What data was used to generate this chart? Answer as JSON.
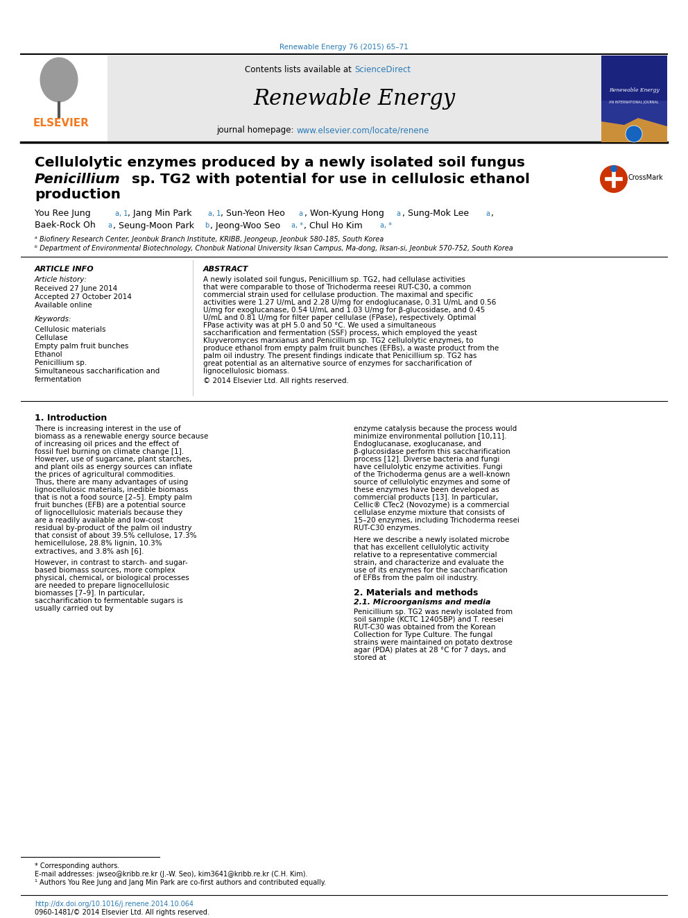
{
  "page_bg": "#ffffff",
  "top_journal_ref": "Renewable Energy 76 (2015) 65–71",
  "top_journal_ref_color": "#2a7ab5",
  "header_bg": "#e8e8e8",
  "header_border_color": "#000000",
  "elsevier_color": "#f47920",
  "journal_title": "Renewable Energy",
  "contents_text": "Contents lists available at ",
  "sciencedirect_text": "ScienceDirect",
  "sciencedirect_color": "#2a7ab5",
  "homepage_text": "journal homepage: ",
  "homepage_url": "www.elsevier.com/locate/renene",
  "homepage_url_color": "#2a7ab5",
  "paper_title_line1": "Cellulolytic enzymes produced by a newly isolated soil fungus",
  "paper_title_line2": "Penicillium sp. TG2 with potential for use in cellulosic ethanol",
  "paper_title_line3": "production",
  "paper_title_italic_word": "Penicillium",
  "authors_line1": "You Ree Jung ᵃ¹ⁿ, Jang Min Park ᵃ¹, Sun-Yeon Heo ᵃ, Won-Kyung Hong ᵃ, Sung-Mok Lee ᵃ,",
  "authors_line2": "Baek-Rock Oh ᵃ, Seung-Moon Park ᵇ, Jeong-Woo Seo ᵃ,*, Chul Ho Kim ᵃ,*",
  "affil_a": "ᵃ Biofinery Research Center, Jeonbuk Branch Institute, KRIBB, Jeongeup, Jeonbuk 580-185, South Korea",
  "affil_b": "ᵇ Department of Environmental Biotechnology, Chonbuk National University Iksan Campus, Ma-dong, Iksan-si, Jeonbuk 570-752, South Korea",
  "article_info_title": "ARTICLE INFO",
  "article_history_title": "Article history:",
  "received_text": "Received 27 June 2014",
  "accepted_text": "Accepted 27 October 2014",
  "available_text": "Available online",
  "keywords_title": "Keywords:",
  "keywords": [
    "Cellulosic materials",
    "Cellulase",
    "Empty palm fruit bunches",
    "Ethanol",
    "Penicillium sp.",
    "Simultaneous saccharification and",
    "fermentation"
  ],
  "abstract_title": "ABSTRACT",
  "abstract_text": "A newly isolated soil fungus, Penicillium sp. TG2, had cellulase activities that were comparable to those of Trichoderma reesei RUT-C30, a common commercial strain used for cellulase production. The maximal and specific activities were 1.27 U/mL and 2.28 U/mg for endoglucanase, 0.31 U/mL and 0.56 U/mg for exoglucanase, 0.54 U/mL and 1.03 U/mg for β-glucosidase, and 0.45 U/mL and 0.81 U/mg for filter paper cellulase (FPase), respectively. Optimal FPase activity was at pH 5.0 and 50 °C. We used a simultaneous saccharification and fermentation (SSF) process, which employed the yeast Kluyveromyces marxianus and Penicillium sp. TG2 cellulolytic enzymes, to produce ethanol from empty palm fruit bunches (EFBs), a waste product from the palm oil industry. The present findings indicate that Penicillium sp. TG2 has great potential as an alternative source of enzymes for saccharification of lignocellulosic biomass.",
  "copyright_text": "© 2014 Elsevier Ltd. All rights reserved.",
  "intro_title": "1. Introduction",
  "intro_text1": "There is increasing interest in the use of biomass as a renewable energy source because of increasing oil prices and the effect of fossil fuel burning on climate change [1]. However, use of sugarcane, plant starches, and plant oils as energy sources can inflate the prices of agricultural commodities. Thus, there are many advantages of using lignocellulosic materials, inedible biomass that is not a food source [2–5]. Empty palm fruit bunches (EFB) are a potential source of lignocellulosic materials because they are a readily available and low-cost residual by-product of the palm oil industry that consist of about 39.5% cellulose, 17.3% hemicellulose, 28.8% lignin, 10.3% extractives, and 3.8% ash [6].",
  "intro_text2": "However, in contrast to starch- and sugar-based biomass sources, more complex physical, chemical, or biological processes are needed to prepare lignocellulosic biomasses [7–9]. In particular, saccharification to fermentable sugars is usually carried out by",
  "right_col_text1": "enzyme catalysis because the process would minimize environmental pollution [10,11]. Endoglucanase, exoglucanase, and β-glucosidase perform this saccharification process [12]. Diverse bacteria and fungi have cellulolytic enzyme activities. Fungi of the Trichoderma genus are a well-known source of cellulolytic enzymes and some of these enzymes have been developed as commercial products [13]. In particular, Cellic® CTec2 (Novozyme) is a commercial cellulase enzyme mixture that consists of 15–20 enzymes, including Trichoderma reesei RUT-C30 enzymes.",
  "right_col_text2": "Here we describe a newly isolated microbe that has excellent cellulolytic activity relative to a representative commercial strain, and characterize and evaluate the use of its enzymes for the saccharification of EFBs from the palm oil industry.",
  "methods_title": "2. Materials and methods",
  "methods_sub_title": "2.1. Microorganisms and media",
  "methods_text": "Penicillium sp. TG2 was newly isolated from soil sample (KCTC 12405BP) and T. reesei RUT-C30 was obtained from the Korean Collection for Type Culture. The fungal strains were maintained on potato dextrose agar (PDA) plates at 28 °C for 7 days, and stored at",
  "footnote_corresponding": "* Corresponding authors.",
  "footnote_email": "E-mail addresses: jwseo@kribb.re.kr (J.-W. Seo), kim3641@kribb.re.kr (C.H. Kim).",
  "footnote_cofirst": "¹ Authors You Ree Jung and Jang Min Park are co-first authors and contributed equally.",
  "doi_text": "http://dx.doi.org/10.1016/j.renene.2014.10.064",
  "issn_text": "0960-1481/© 2014 Elsevier Ltd. All rights reserved.",
  "section_divider_color": "#000000",
  "text_color": "#000000",
  "gray_text": "#555555",
  "light_gray": "#cccccc"
}
